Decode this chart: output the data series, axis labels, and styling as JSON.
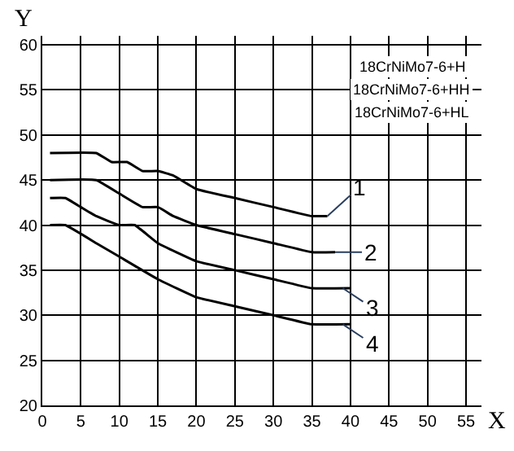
{
  "chart_data": {
    "type": "line",
    "xlabel": "X",
    "ylabel": "Y",
    "xlim": [
      0,
      57
    ],
    "ylim": [
      20,
      61
    ],
    "xticks": [
      0,
      5,
      10,
      15,
      20,
      25,
      30,
      35,
      40,
      45,
      50,
      55
    ],
    "yticks": [
      20,
      25,
      30,
      35,
      40,
      45,
      50,
      55,
      60
    ],
    "grid": true,
    "legend": false,
    "marker": "none",
    "line_style": "solid",
    "series": [
      {
        "color": "#000000",
        "x": [
          1,
          7,
          9,
          11,
          13,
          15,
          17,
          20,
          25,
          30,
          35,
          37
        ],
        "values": [
          48,
          48,
          47,
          47,
          46,
          46,
          45.5,
          44,
          43,
          42,
          41,
          41
        ]
      },
      {
        "color": "#000000",
        "x": [
          1,
          7,
          10,
          13,
          15,
          17,
          20,
          25,
          30,
          35,
          38
        ],
        "values": [
          45,
          45,
          43.5,
          42,
          42,
          41,
          40,
          39,
          38,
          37,
          37
        ]
      },
      {
        "color": "#000000",
        "x": [
          1,
          3,
          5,
          7,
          10,
          12,
          15,
          20,
          25,
          30,
          35,
          40
        ],
        "values": [
          43,
          43,
          42,
          41,
          40,
          40,
          38,
          36,
          35,
          34,
          33,
          33
        ]
      },
      {
        "color": "#000000",
        "x": [
          1,
          3,
          7,
          10,
          15,
          20,
          25,
          30,
          35,
          40
        ],
        "values": [
          40,
          40,
          38,
          36.5,
          34,
          32,
          31,
          30,
          29,
          29
        ]
      }
    ],
    "annotations": [
      {
        "text": "1",
        "x": 37,
        "y": 41
      },
      {
        "text": "2",
        "x": 38,
        "y": 37
      },
      {
        "text": "3",
        "x": 39,
        "y": 33
      },
      {
        "text": "4",
        "x": 39,
        "y": 29
      },
      "18CrNiMo7-6+H",
      "18CrNiMo7-6+HH",
      "18CrNiMo7-6+HL"
    ]
  }
}
